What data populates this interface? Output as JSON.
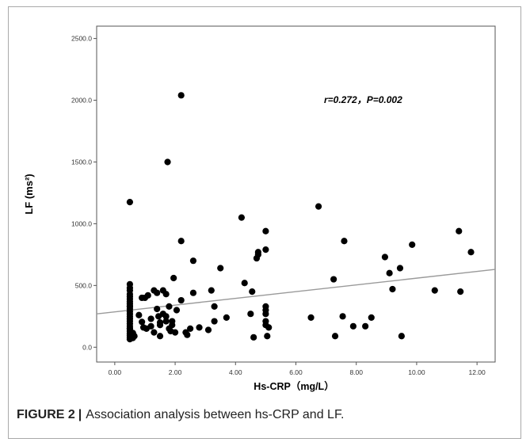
{
  "caption": {
    "label": "FIGURE 2",
    "separator": "|",
    "text": "Association analysis between hs-CRP and LF."
  },
  "colors": {
    "points": "#000000",
    "regression_line": "#9a9a9a",
    "plot_border": "#555555"
  },
  "chart_data": {
    "type": "scatter",
    "xlabel": "Hs-CRP（mg/L）",
    "ylabel": "LF (ms²)",
    "annotation": "r=0.272，P=0.002",
    "xlim": [
      -0.6,
      12.6
    ],
    "ylim": [
      -120,
      2600
    ],
    "x_ticks": [
      0,
      2,
      4,
      6,
      8,
      10,
      12
    ],
    "x_tick_labels": [
      "0.00",
      "2.00",
      "4.00",
      "6.00",
      "8.00",
      "10.00",
      "12.00"
    ],
    "y_ticks": [
      0,
      500,
      1000,
      1500,
      2000,
      2500
    ],
    "y_tick_labels": [
      "0.0",
      "500.0",
      "1000.0",
      "1500.0",
      "2000.0",
      "2500.0"
    ],
    "grid": false,
    "regression_line": {
      "x": [
        -0.6,
        12.6
      ],
      "y": [
        270,
        630
      ]
    },
    "x": [
      0.5,
      0.5,
      0.5,
      0.5,
      0.5,
      0.5,
      0.5,
      0.5,
      0.5,
      0.5,
      0.5,
      0.5,
      0.5,
      0.5,
      0.5,
      0.5,
      0.5,
      0.5,
      0.5,
      0.5,
      0.5,
      0.5,
      0.5,
      0.5,
      0.5,
      0.5,
      0.6,
      0.6,
      0.65,
      0.8,
      0.9,
      0.9,
      0.95,
      1.0,
      1.05,
      1.1,
      1.2,
      1.2,
      1.3,
      1.3,
      1.4,
      1.4,
      1.45,
      1.5,
      1.5,
      1.5,
      1.6,
      1.6,
      1.7,
      1.7,
      1.7,
      1.75,
      1.8,
      1.8,
      1.85,
      1.9,
      1.9,
      1.95,
      2.0,
      2.05,
      2.2,
      2.2,
      2.2,
      2.35,
      2.4,
      2.5,
      2.6,
      2.6,
      2.8,
      3.1,
      3.2,
      3.3,
      3.3,
      3.5,
      3.7,
      4.2,
      4.3,
      4.5,
      4.55,
      4.6,
      4.7,
      4.75,
      4.75,
      5.0,
      5.0,
      5.0,
      5.0,
      5.0,
      5.0,
      5.0,
      5.05,
      5.1,
      6.5,
      6.75,
      7.25,
      7.3,
      7.55,
      7.6,
      7.9,
      8.3,
      8.5,
      8.95,
      9.1,
      9.2,
      9.45,
      9.5,
      9.85,
      10.6,
      11.4,
      11.45,
      11.8
    ],
    "y": [
      1175,
      510,
      480,
      460,
      430,
      410,
      390,
      370,
      350,
      330,
      310,
      290,
      270,
      250,
      230,
      210,
      190,
      170,
      150,
      130,
      110,
      95,
      80,
      65,
      150,
      330,
      115,
      75,
      90,
      260,
      400,
      205,
      160,
      400,
      150,
      420,
      230,
      170,
      120,
      460,
      440,
      310,
      250,
      200,
      180,
      90,
      460,
      270,
      430,
      250,
      210,
      1500,
      330,
      150,
      130,
      210,
      180,
      560,
      120,
      300,
      2040,
      860,
      380,
      120,
      100,
      150,
      440,
      700,
      160,
      140,
      460,
      330,
      210,
      640,
      240,
      1050,
      520,
      270,
      450,
      80,
      720,
      770,
      750,
      940,
      790,
      330,
      300,
      270,
      210,
      180,
      90,
      160,
      240,
      1140,
      550,
      90,
      250,
      860,
      170,
      170,
      240,
      730,
      600,
      470,
      640,
      90,
      830,
      460,
      940,
      450,
      770
    ]
  }
}
